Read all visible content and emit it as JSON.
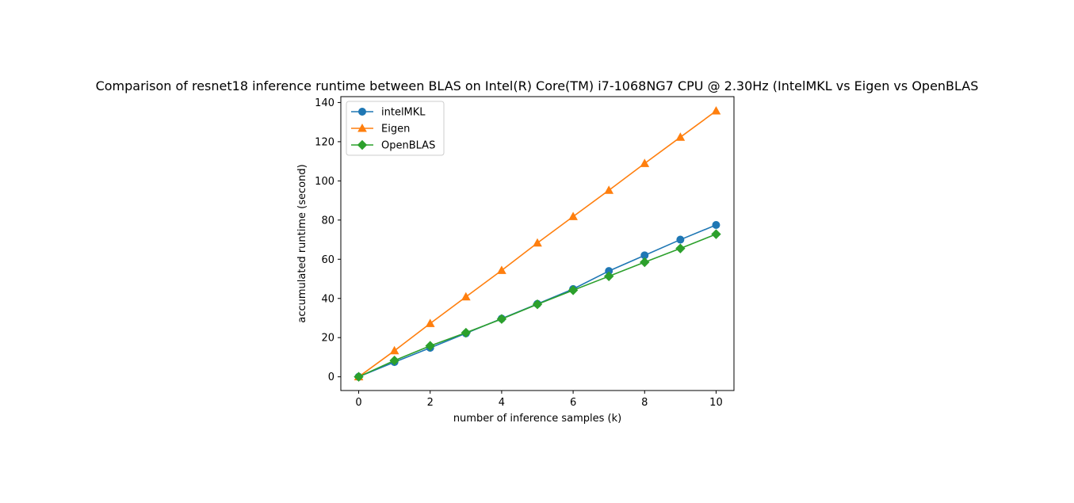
{
  "chart_data": {
    "type": "line",
    "title": "Comparison of resnet18 inference runtime between BLAS on Intel(R) Core(TM) i7-1068NG7 CPU @ 2.30Hz (IntelMKL vs Eigen vs OpenBLAS",
    "xlabel": "number of inference samples (k)",
    "ylabel": "accumulated runtime (second)",
    "x": [
      0,
      1,
      2,
      3,
      4,
      5,
      6,
      7,
      8,
      9,
      10
    ],
    "xlim": [
      -0.5,
      10.5
    ],
    "ylim": [
      -7,
      143
    ],
    "xticks": [
      0,
      2,
      4,
      6,
      8,
      10
    ],
    "yticks": [
      0,
      20,
      40,
      60,
      80,
      100,
      120,
      140
    ],
    "grid": false,
    "legend_position": "top-left",
    "series": [
      {
        "name": "intelMKL",
        "color": "#1f77b4",
        "marker": "circle",
        "values": [
          0,
          7.5,
          14.8,
          22.2,
          29.7,
          37.2,
          44.8,
          54.0,
          62.0,
          70.0,
          77.5
        ]
      },
      {
        "name": "Eigen",
        "color": "#ff7f0e",
        "marker": "triangle",
        "values": [
          0,
          13.3,
          27.2,
          40.8,
          54.3,
          68.3,
          81.8,
          95.2,
          108.9,
          122.3,
          135.7
        ]
      },
      {
        "name": "OpenBLAS",
        "color": "#2ca02c",
        "marker": "diamond",
        "values": [
          0,
          8.3,
          15.8,
          22.5,
          29.5,
          37.0,
          44.2,
          51.3,
          58.5,
          65.5,
          72.8
        ]
      }
    ]
  }
}
